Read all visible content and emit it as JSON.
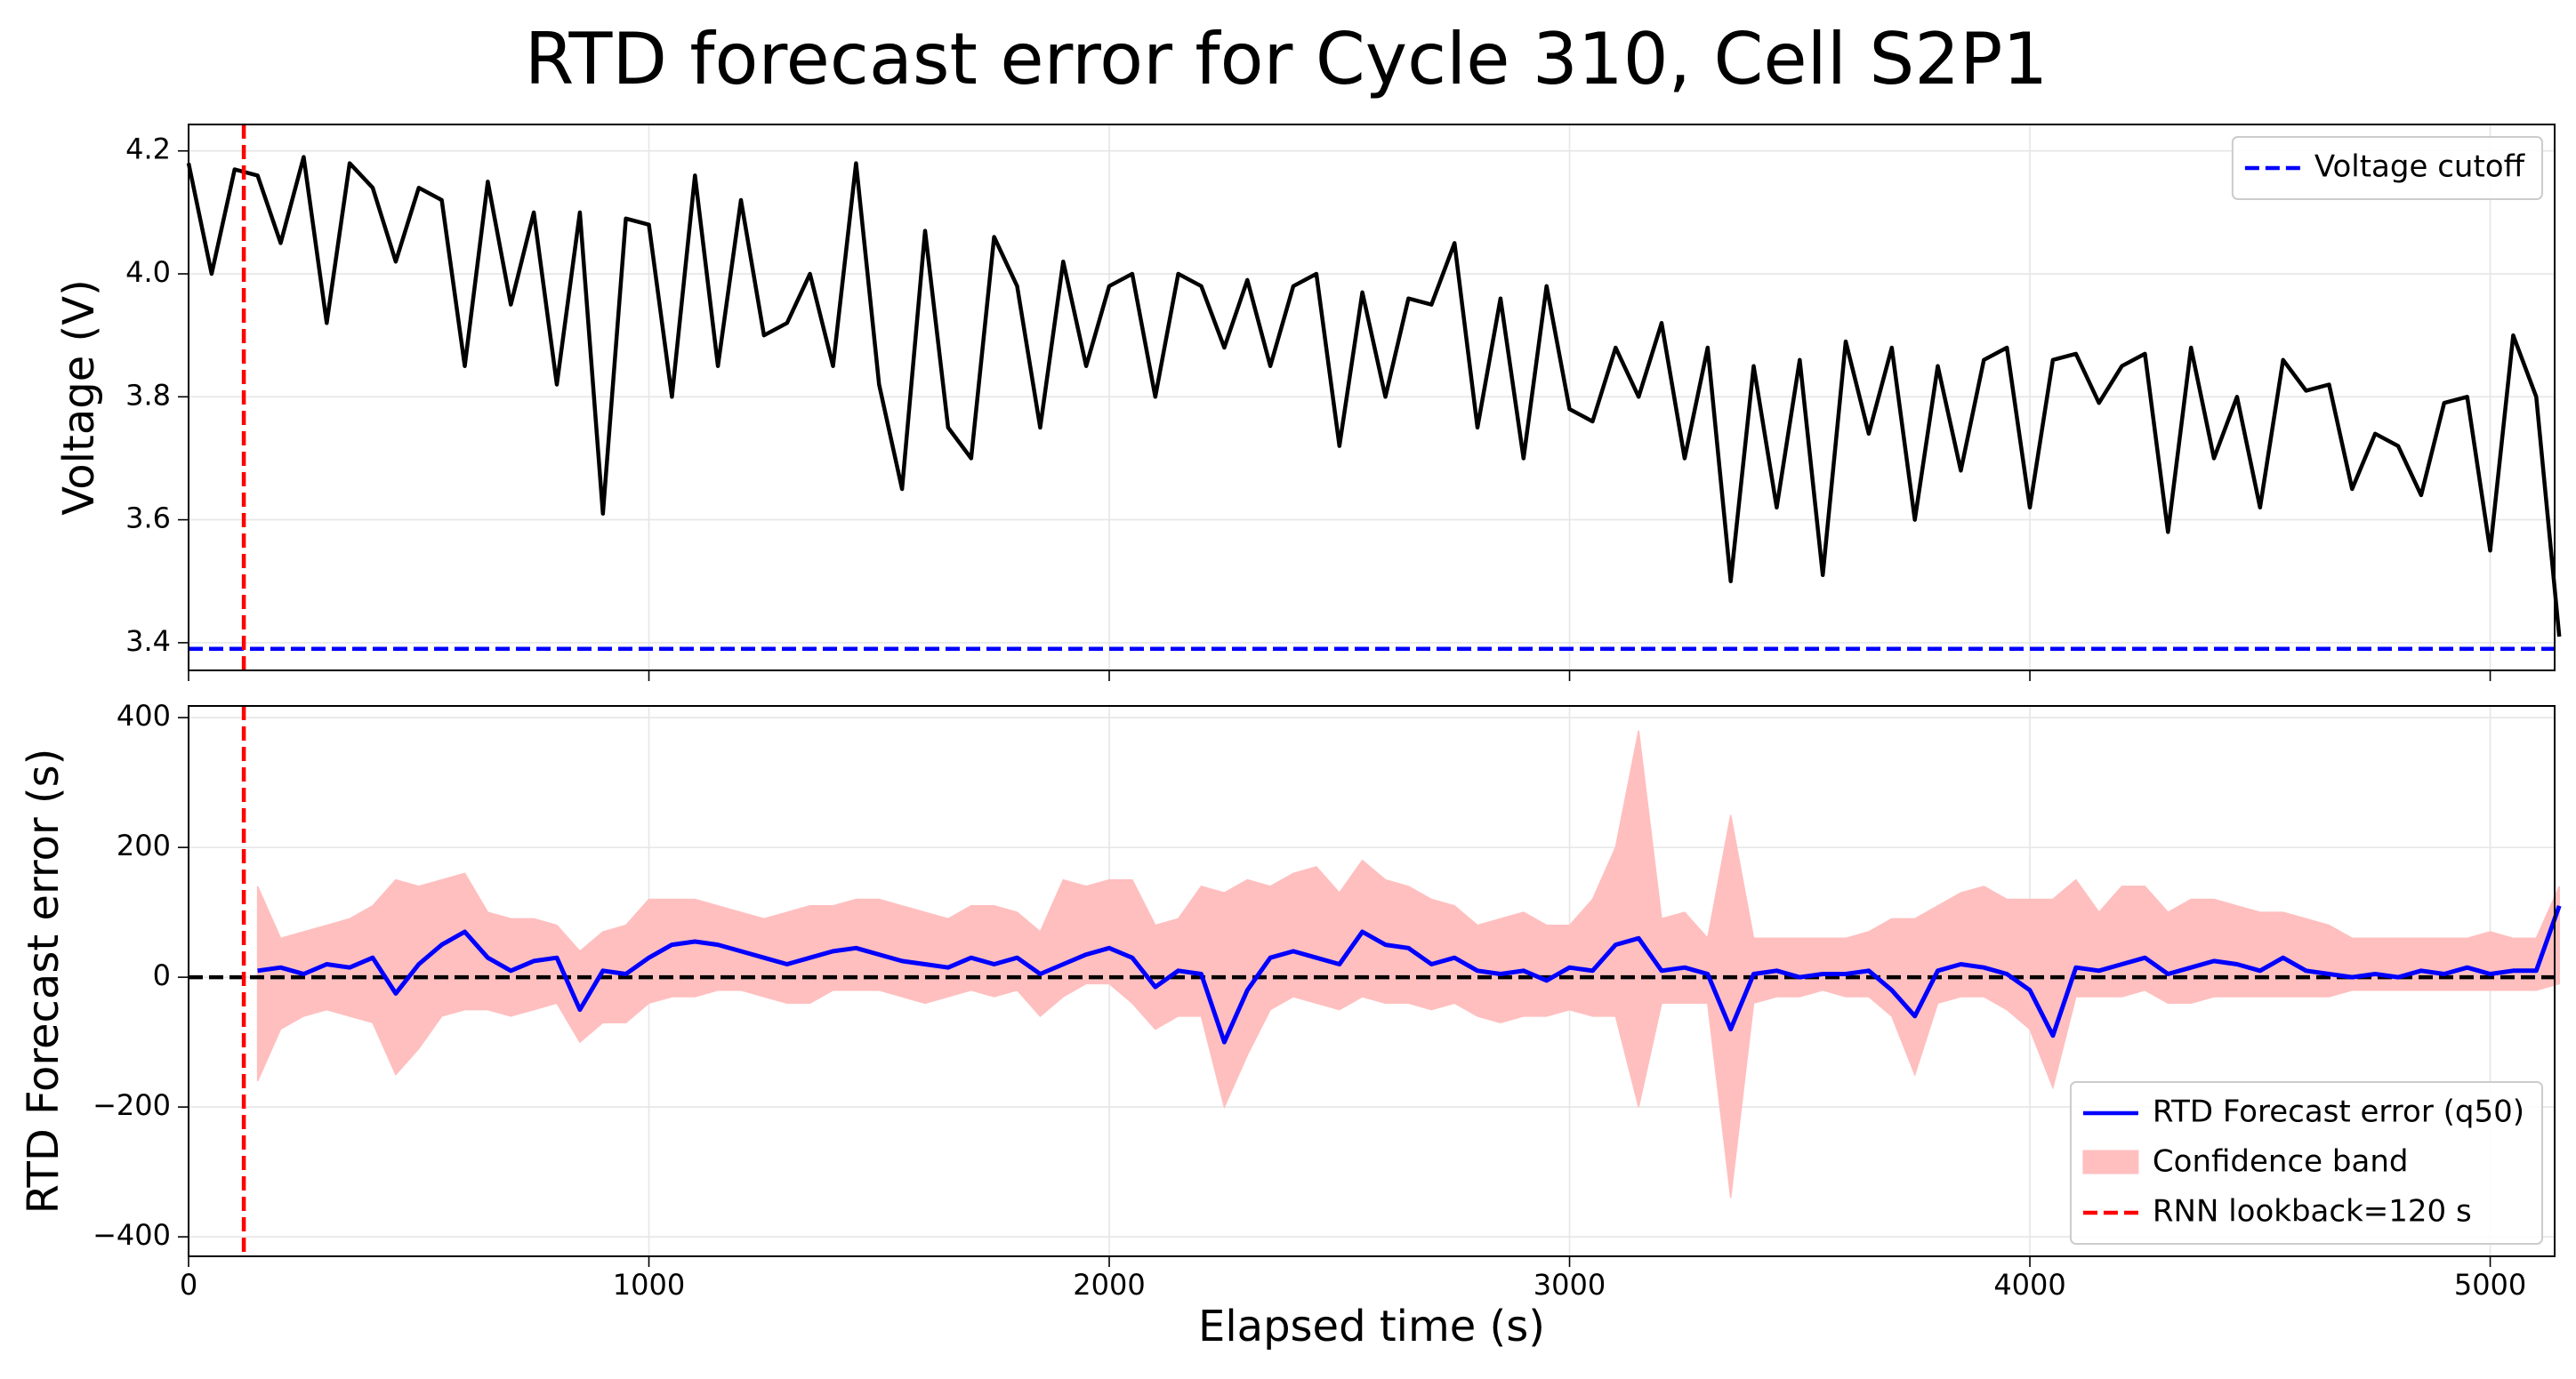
{
  "title": "RTD forecast error for Cycle 310, Cell S2P1",
  "chart_data": [
    {
      "type": "line",
      "ylabel": "Voltage (V)",
      "x": [
        0,
        50,
        100,
        150,
        200,
        250,
        300,
        350,
        400,
        450,
        500,
        550,
        600,
        650,
        700,
        750,
        800,
        850,
        900,
        950,
        1000,
        1050,
        1100,
        1150,
        1200,
        1250,
        1300,
        1350,
        1400,
        1450,
        1500,
        1550,
        1600,
        1650,
        1700,
        1750,
        1800,
        1850,
        1900,
        1950,
        2000,
        2050,
        2100,
        2150,
        2200,
        2250,
        2300,
        2350,
        2400,
        2450,
        2500,
        2550,
        2600,
        2650,
        2700,
        2750,
        2800,
        2850,
        2900,
        2950,
        3000,
        3050,
        3100,
        3150,
        3200,
        3250,
        3300,
        3350,
        3400,
        3450,
        3500,
        3550,
        3600,
        3650,
        3700,
        3750,
        3800,
        3850,
        3900,
        3950,
        4000,
        4050,
        4100,
        4150,
        4200,
        4250,
        4300,
        4350,
        4400,
        4450,
        4500,
        4550,
        4600,
        4650,
        4700,
        4750,
        4800,
        4850,
        4900,
        4950,
        5000,
        5050,
        5100,
        5150
      ],
      "series": [
        {
          "color": "#000000",
          "values": [
            4.18,
            4.0,
            4.17,
            4.16,
            4.05,
            4.19,
            3.92,
            4.18,
            4.14,
            4.02,
            4.14,
            4.12,
            3.85,
            4.15,
            3.95,
            4.1,
            3.82,
            4.1,
            3.61,
            4.09,
            4.08,
            3.8,
            4.16,
            3.85,
            4.12,
            3.9,
            3.92,
            4.0,
            3.85,
            4.18,
            3.82,
            3.65,
            4.07,
            3.75,
            3.7,
            4.06,
            3.98,
            3.75,
            4.02,
            3.85,
            3.98,
            4.0,
            3.8,
            4.0,
            3.98,
            3.88,
            3.99,
            3.85,
            3.98,
            4.0,
            3.72,
            3.97,
            3.8,
            3.96,
            3.95,
            4.05,
            3.75,
            3.96,
            3.7,
            3.98,
            3.78,
            3.76,
            3.88,
            3.8,
            3.92,
            3.7,
            3.88,
            3.5,
            3.85,
            3.62,
            3.86,
            3.51,
            3.89,
            3.74,
            3.88,
            3.6,
            3.85,
            3.68,
            3.86,
            3.88,
            3.62,
            3.86,
            3.87,
            3.79,
            3.85,
            3.87,
            3.58,
            3.88,
            3.7,
            3.8,
            3.62,
            3.86,
            3.81,
            3.82,
            3.65,
            3.74,
            3.72,
            3.64,
            3.79,
            3.8,
            3.55,
            3.9,
            3.8,
            3.41
          ]
        }
      ],
      "hlines": [
        {
          "name": "Voltage cutoff",
          "value": 3.39,
          "color": "#0000ff",
          "dash": true
        }
      ],
      "vlines": [
        {
          "value": 120,
          "color": "#ff0000",
          "dash": true
        }
      ],
      "xlim": [
        0,
        5140
      ],
      "xticks": [
        0,
        1000,
        2000,
        3000,
        4000,
        5000
      ],
      "ylim": [
        3.355,
        4.243
      ],
      "yticks": [
        3.4,
        3.6,
        3.8,
        {
          "value": 4,
          "label": "4.0"
        },
        4.2
      ],
      "grid": true,
      "legend": "upper right"
    },
    {
      "type": "line",
      "xlabel": "Elapsed time (s)",
      "ylabel": "RTD Forecast error (s)",
      "x": [
        0,
        50,
        100,
        150,
        200,
        250,
        300,
        350,
        400,
        450,
        500,
        550,
        600,
        650,
        700,
        750,
        800,
        850,
        900,
        950,
        1000,
        1050,
        1100,
        1150,
        1200,
        1250,
        1300,
        1350,
        1400,
        1450,
        1500,
        1550,
        1600,
        1650,
        1700,
        1750,
        1800,
        1850,
        1900,
        1950,
        2000,
        2050,
        2100,
        2150,
        2200,
        2250,
        2300,
        2350,
        2400,
        2450,
        2500,
        2550,
        2600,
        2650,
        2700,
        2750,
        2800,
        2850,
        2900,
        2950,
        3000,
        3050,
        3100,
        3150,
        3200,
        3250,
        3300,
        3350,
        3400,
        3450,
        3500,
        3550,
        3600,
        3650,
        3700,
        3750,
        3800,
        3850,
        3900,
        3950,
        4000,
        4050,
        4100,
        4150,
        4200,
        4250,
        4300,
        4350,
        4400,
        4450,
        4500,
        4550,
        4600,
        4650,
        4700,
        4750,
        4800,
        4850,
        4900,
        4950,
        5000,
        5050,
        5100,
        5150
      ],
      "series": [
        {
          "name": "RTD Forecast error (q50)",
          "color": "#0000ff",
          "values": [
            null,
            null,
            null,
            10,
            15,
            5,
            20,
            15,
            30,
            -25,
            20,
            50,
            70,
            30,
            10,
            25,
            30,
            -50,
            10,
            5,
            30,
            50,
            55,
            50,
            40,
            30,
            20,
            30,
            40,
            45,
            35,
            25,
            20,
            15,
            30,
            20,
            30,
            5,
            20,
            35,
            45,
            30,
            -15,
            10,
            5,
            -100,
            -20,
            30,
            40,
            30,
            20,
            70,
            50,
            45,
            20,
            30,
            10,
            5,
            10,
            -5,
            15,
            10,
            50,
            60,
            10,
            15,
            5,
            -80,
            5,
            10,
            0,
            5,
            5,
            10,
            -20,
            -60,
            10,
            20,
            15,
            5,
            -20,
            -90,
            15,
            10,
            20,
            30,
            5,
            15,
            25,
            20,
            10,
            30,
            10,
            5,
            0,
            5,
            0,
            10,
            5,
            15,
            5,
            10,
            10,
            110
          ]
        }
      ],
      "bands": [
        {
          "name": "Confidence band",
          "color": "#ffbfbf",
          "lower": [
            null,
            null,
            null,
            -160,
            -80,
            -60,
            -50,
            -60,
            -70,
            -150,
            -110,
            -60,
            -50,
            -50,
            -60,
            -50,
            -40,
            -100,
            -70,
            -70,
            -40,
            -30,
            -30,
            -20,
            -20,
            -30,
            -40,
            -40,
            -20,
            -20,
            -20,
            -30,
            -40,
            -30,
            -20,
            -30,
            -20,
            -60,
            -30,
            -10,
            -10,
            -40,
            -80,
            -60,
            -60,
            -200,
            -120,
            -50,
            -30,
            -40,
            -50,
            -30,
            -40,
            -40,
            -50,
            -40,
            -60,
            -70,
            -60,
            -60,
            -50,
            -60,
            -60,
            -200,
            -40,
            -40,
            -40,
            -340,
            -40,
            -30,
            -30,
            -20,
            -30,
            -30,
            -60,
            -150,
            -40,
            -30,
            -30,
            -50,
            -80,
            -170,
            -30,
            -30,
            -30,
            -20,
            -40,
            -40,
            -30,
            -30,
            -30,
            -30,
            -30,
            -30,
            -20,
            -20,
            -20,
            -20,
            -20,
            -20,
            -20,
            -20,
            -20,
            -10
          ],
          "upper": [
            null,
            null,
            null,
            140,
            60,
            70,
            80,
            90,
            110,
            150,
            140,
            150,
            160,
            100,
            90,
            90,
            80,
            40,
            70,
            80,
            120,
            120,
            120,
            110,
            100,
            90,
            100,
            110,
            110,
            120,
            120,
            110,
            100,
            90,
            110,
            110,
            100,
            70,
            150,
            140,
            150,
            150,
            80,
            90,
            140,
            130,
            150,
            140,
            160,
            170,
            130,
            180,
            150,
            140,
            120,
            110,
            80,
            90,
            100,
            80,
            80,
            120,
            200,
            380,
            90,
            100,
            60,
            250,
            60,
            60,
            60,
            60,
            60,
            70,
            90,
            90,
            110,
            130,
            140,
            120,
            120,
            120,
            150,
            100,
            140,
            140,
            100,
            120,
            120,
            110,
            100,
            100,
            90,
            80,
            60,
            60,
            60,
            60,
            60,
            60,
            70,
            60,
            60,
            140
          ]
        }
      ],
      "hlines": [
        {
          "value": 0,
          "color": "#000000",
          "dash": true
        }
      ],
      "vlines": [
        {
          "name": "RNN lookback=120 s",
          "value": 120,
          "color": "#ff0000",
          "dash": true
        }
      ],
      "xlim": [
        0,
        5140
      ],
      "xticks": [
        0,
        1000,
        2000,
        3000,
        4000,
        5000
      ],
      "ylim": [
        -430,
        418
      ],
      "yticks": [
        {
          "value": -400,
          "label": "−400"
        },
        {
          "value": -200,
          "label": "−200"
        },
        0,
        200,
        400
      ],
      "grid": true,
      "legend": "lower right"
    }
  ]
}
